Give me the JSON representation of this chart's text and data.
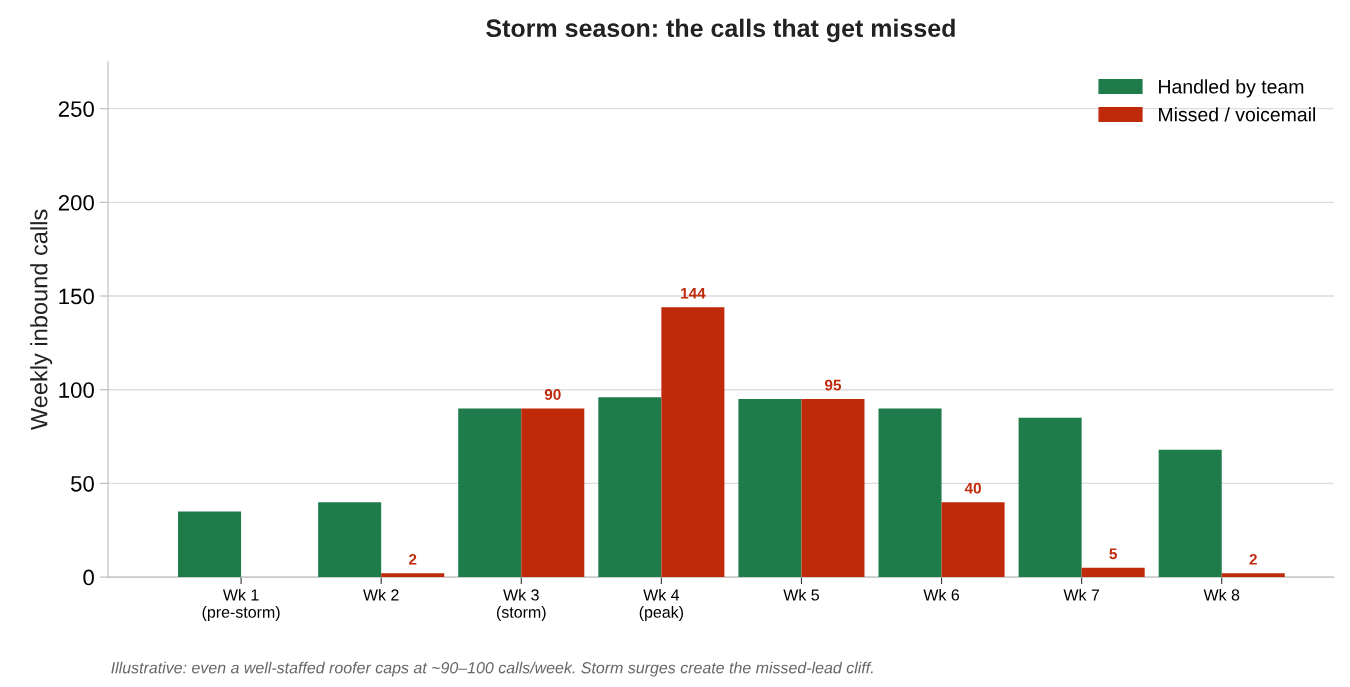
{
  "chart_data": {
    "type": "bar",
    "title": "Storm season: the calls that get missed",
    "ylabel": "Weekly inbound calls",
    "categories": [
      "Wk 1\n(pre-storm)",
      "Wk 2",
      "Wk 3\n(storm)",
      "Wk 4\n(peak)",
      "Wk 5",
      "Wk 6",
      "Wk 7",
      "Wk 8"
    ],
    "series": [
      {
        "name": "Handled by team",
        "color": "#1e7b4a",
        "values": [
          35,
          40,
          90,
          96,
          95,
          90,
          85,
          68
        ]
      },
      {
        "name": "Missed / voicemail",
        "color": "#bf2a0a",
        "values": [
          0,
          2,
          90,
          144,
          95,
          40,
          5,
          2
        ],
        "value_labels": [
          null,
          "2",
          "90",
          "144",
          "95",
          "40",
          "5",
          "2"
        ]
      }
    ],
    "ylim": [
      0,
      275
    ],
    "yticks": [
      0,
      50,
      100,
      150,
      200,
      250
    ],
    "grid": "y",
    "legend": "top right",
    "annotations": [
      "Illustrative: even a well-staffed roofer caps at ~90–100 calls/week. Storm surges create the missed-lead cliff."
    ]
  }
}
